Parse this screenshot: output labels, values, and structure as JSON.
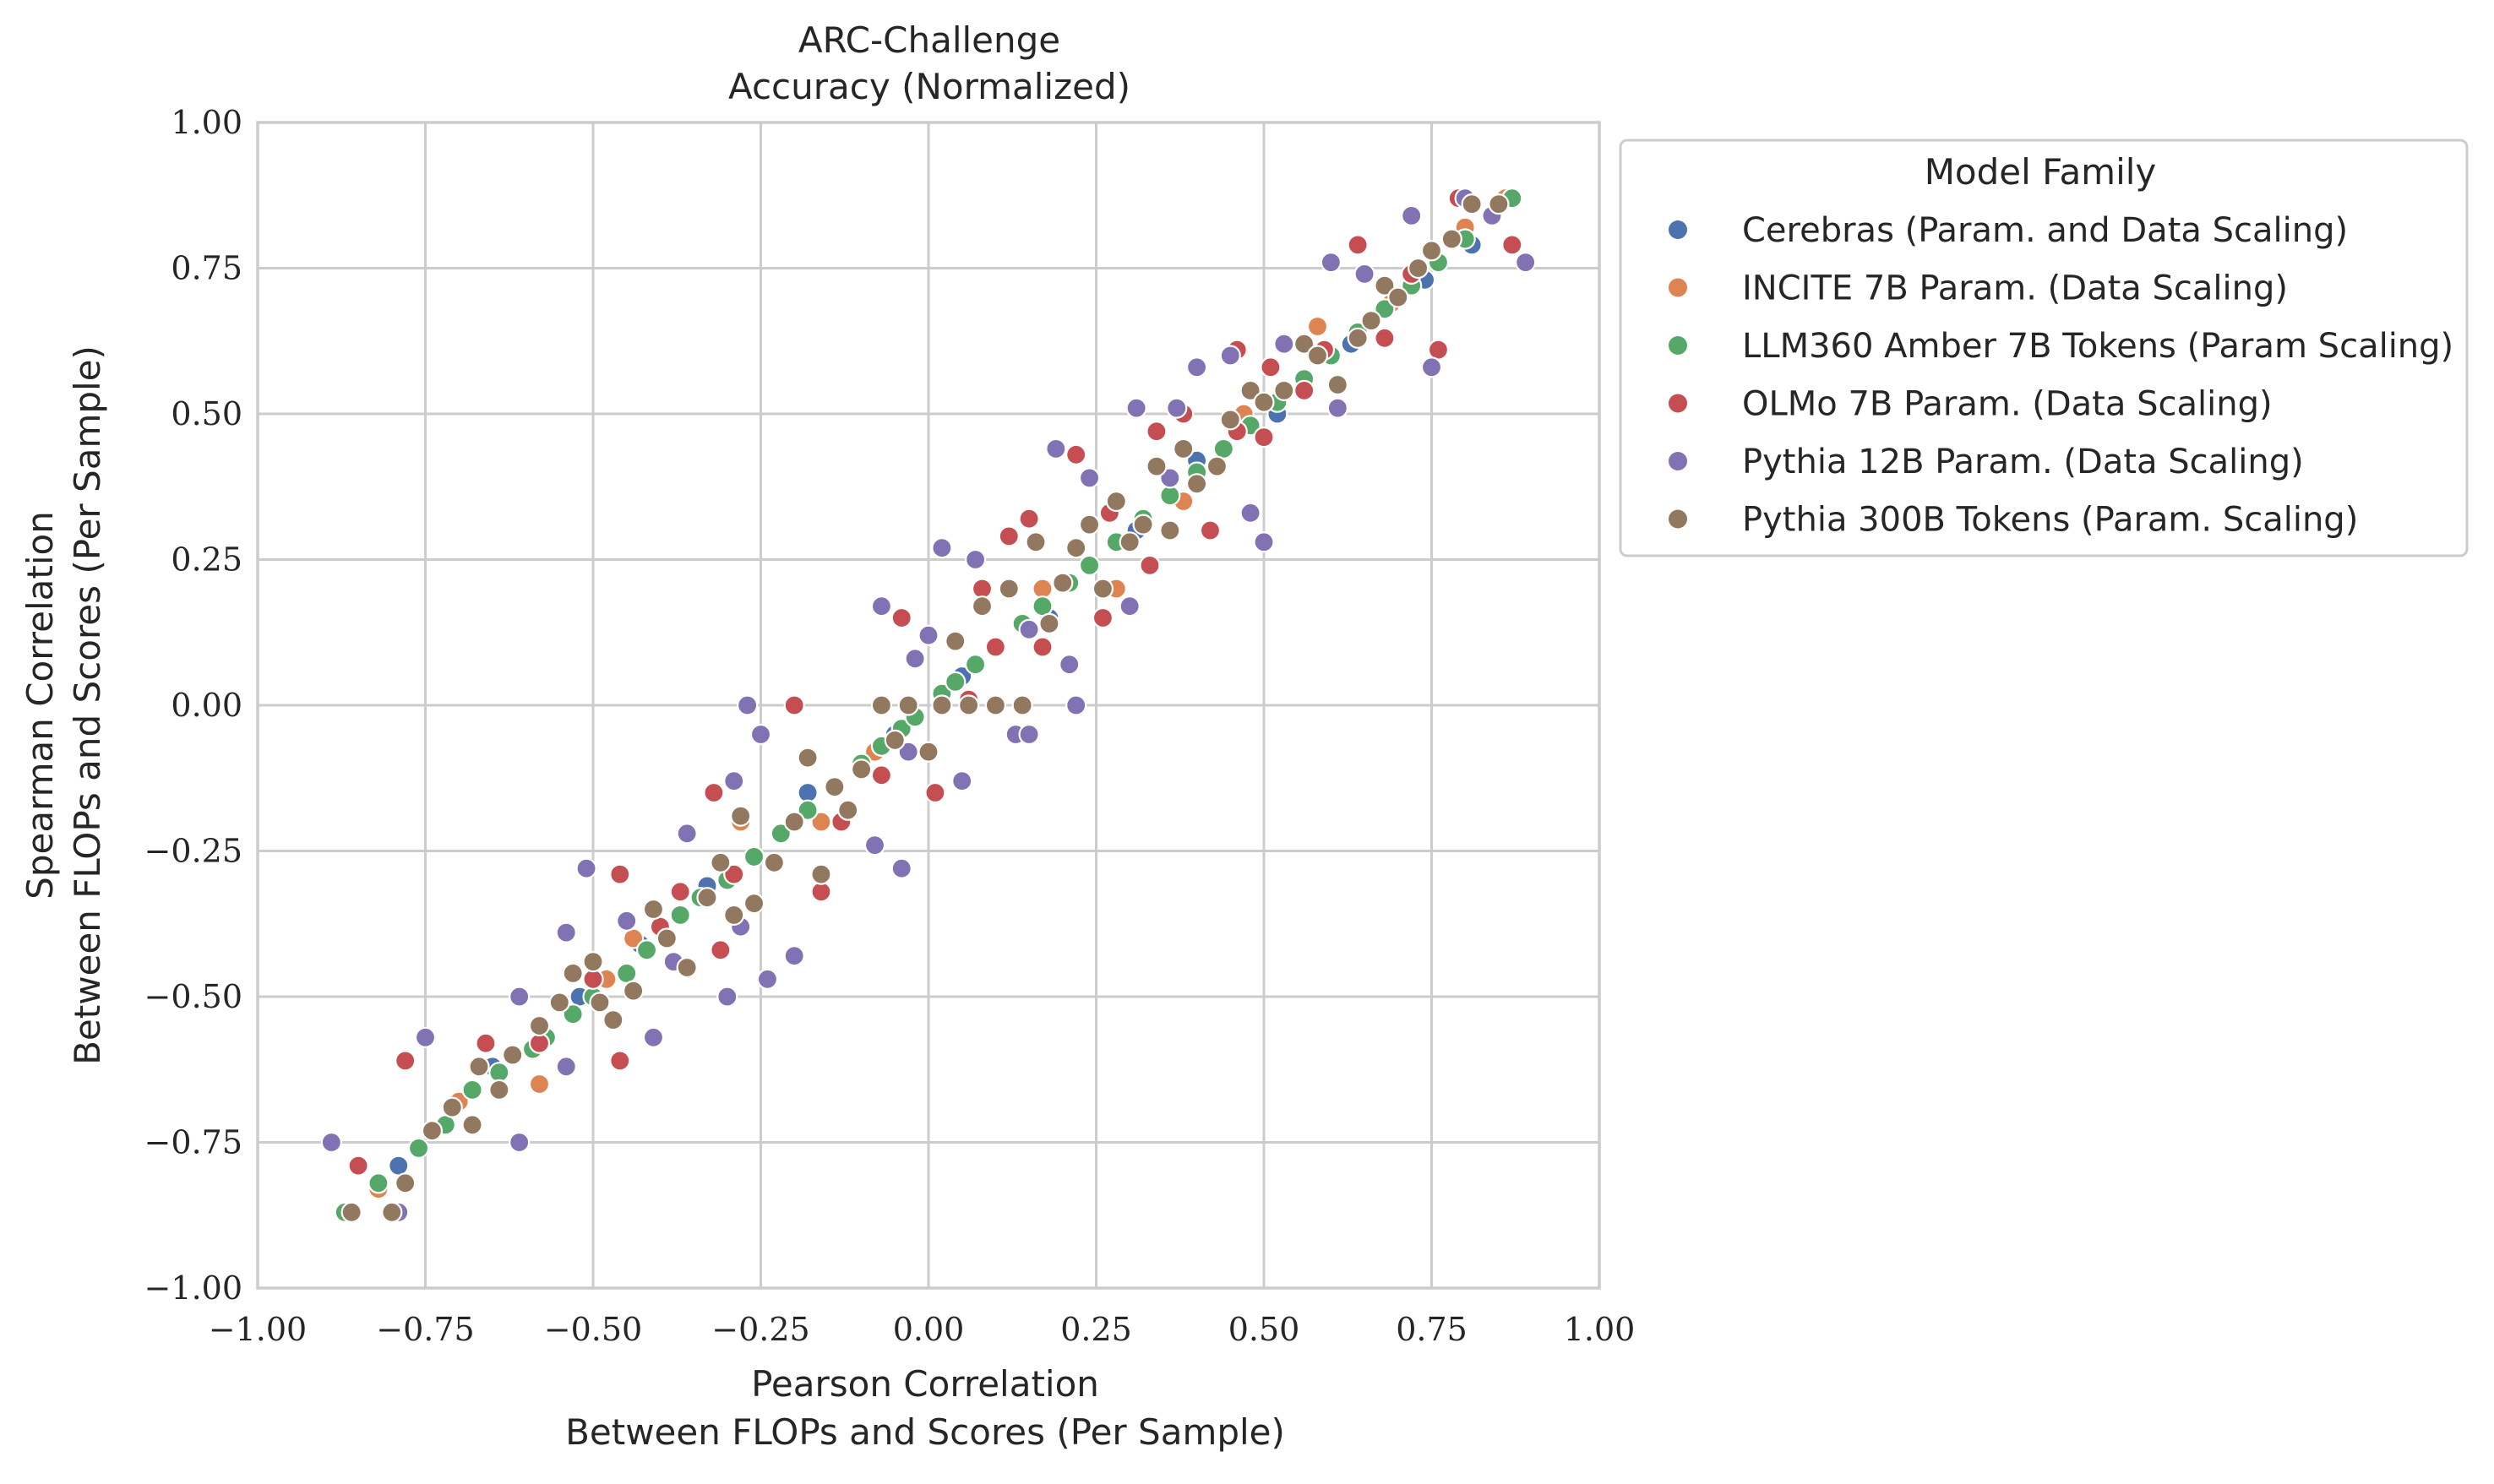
{
  "chart_data": {
    "type": "scatter",
    "title": "ARC-Challenge",
    "subtitle": "Accuracy (Normalized)",
    "xlabel": "Pearson Correlation",
    "xlabel_line2": "Between FLOPs and Scores (Per Sample)",
    "ylabel": "Spearman Correlation",
    "ylabel_line2": "Between FLOPs and Scores (Per Sample)",
    "xlim": [
      -1.0,
      1.0
    ],
    "ylim": [
      -1.0,
      1.0
    ],
    "xticks": [
      "−1.00",
      "−0.75",
      "−0.50",
      "−0.25",
      "0.00",
      "0.25",
      "0.50",
      "0.75",
      "1.00"
    ],
    "yticks": [
      "−1.00",
      "−0.75",
      "−0.50",
      "−0.25",
      "0.00",
      "0.25",
      "0.50",
      "0.75",
      "1.00"
    ],
    "grid": true,
    "legend_title": "Model Family",
    "legend_position": "outside-top-right",
    "series": [
      {
        "name": "Cerebras (Param. and Data Scaling)",
        "color": "#4c72b0",
        "points": [
          [
            -0.79,
            -0.79
          ],
          [
            -0.65,
            -0.62
          ],
          [
            -0.52,
            -0.5
          ],
          [
            -0.43,
            -0.41
          ],
          [
            -0.33,
            -0.31
          ],
          [
            -0.18,
            -0.15
          ],
          [
            -0.05,
            -0.05
          ],
          [
            0.05,
            0.05
          ],
          [
            0.18,
            0.15
          ],
          [
            0.31,
            0.3
          ],
          [
            0.4,
            0.42
          ],
          [
            0.52,
            0.5
          ],
          [
            0.63,
            0.62
          ],
          [
            0.74,
            0.73
          ],
          [
            0.81,
            0.79
          ]
        ]
      },
      {
        "name": "INCITE 7B Param. (Data Scaling)",
        "color": "#dd8452",
        "points": [
          [
            -0.86,
            -0.87
          ],
          [
            -0.82,
            -0.83
          ],
          [
            -0.7,
            -0.68
          ],
          [
            -0.58,
            -0.65
          ],
          [
            -0.48,
            -0.47
          ],
          [
            -0.44,
            -0.4
          ],
          [
            -0.28,
            -0.2
          ],
          [
            -0.16,
            -0.2
          ],
          [
            -0.08,
            -0.08
          ],
          [
            0.1,
            0.1
          ],
          [
            0.17,
            0.2
          ],
          [
            0.28,
            0.2
          ],
          [
            0.38,
            0.35
          ],
          [
            0.47,
            0.5
          ],
          [
            0.58,
            0.65
          ],
          [
            0.69,
            0.69
          ],
          [
            0.8,
            0.82
          ],
          [
            0.86,
            0.87
          ]
        ]
      },
      {
        "name": "LLM360 Amber 7B Tokens (Param Scaling)",
        "color": "#55a868",
        "points": [
          [
            -0.87,
            -0.87
          ],
          [
            -0.82,
            -0.82
          ],
          [
            -0.76,
            -0.76
          ],
          [
            -0.72,
            -0.72
          ],
          [
            -0.68,
            -0.66
          ],
          [
            -0.64,
            -0.63
          ],
          [
            -0.59,
            -0.59
          ],
          [
            -0.57,
            -0.57
          ],
          [
            -0.53,
            -0.53
          ],
          [
            -0.5,
            -0.5
          ],
          [
            -0.45,
            -0.46
          ],
          [
            -0.42,
            -0.42
          ],
          [
            -0.37,
            -0.36
          ],
          [
            -0.34,
            -0.33
          ],
          [
            -0.3,
            -0.3
          ],
          [
            -0.26,
            -0.26
          ],
          [
            -0.22,
            -0.22
          ],
          [
            -0.18,
            -0.18
          ],
          [
            -0.14,
            -0.14
          ],
          [
            -0.1,
            -0.1
          ],
          [
            -0.07,
            -0.07
          ],
          [
            -0.04,
            -0.04
          ],
          [
            -0.02,
            -0.02
          ],
          [
            0.02,
            0.02
          ],
          [
            0.04,
            0.04
          ],
          [
            0.07,
            0.07
          ],
          [
            0.1,
            0.1
          ],
          [
            0.14,
            0.14
          ],
          [
            0.17,
            0.17
          ],
          [
            0.21,
            0.21
          ],
          [
            0.24,
            0.24
          ],
          [
            0.28,
            0.28
          ],
          [
            0.32,
            0.32
          ],
          [
            0.36,
            0.36
          ],
          [
            0.4,
            0.4
          ],
          [
            0.44,
            0.44
          ],
          [
            0.48,
            0.48
          ],
          [
            0.52,
            0.52
          ],
          [
            0.56,
            0.56
          ],
          [
            0.6,
            0.6
          ],
          [
            0.64,
            0.64
          ],
          [
            0.68,
            0.68
          ],
          [
            0.72,
            0.72
          ],
          [
            0.76,
            0.76
          ],
          [
            0.8,
            0.8
          ],
          [
            0.84,
            0.84
          ],
          [
            0.87,
            0.87
          ]
        ]
      },
      {
        "name": "OLMo 7B Param. (Data Scaling)",
        "color": "#c44e52",
        "points": [
          [
            -0.85,
            -0.79
          ],
          [
            -0.78,
            -0.61
          ],
          [
            -0.66,
            -0.58
          ],
          [
            -0.58,
            -0.58
          ],
          [
            -0.5,
            -0.47
          ],
          [
            -0.46,
            -0.61
          ],
          [
            -0.46,
            -0.29
          ],
          [
            -0.4,
            -0.38
          ],
          [
            -0.37,
            -0.32
          ],
          [
            -0.31,
            -0.42
          ],
          [
            -0.32,
            -0.15
          ],
          [
            -0.29,
            -0.29
          ],
          [
            -0.2,
            -0.43
          ],
          [
            -0.2,
            -0.2
          ],
          [
            -0.16,
            -0.32
          ],
          [
            -0.13,
            -0.2
          ],
          [
            -0.2,
            0.0
          ],
          [
            -0.07,
            -0.12
          ],
          [
            -0.04,
            0.15
          ],
          [
            0.01,
            -0.15
          ],
          [
            0.06,
            0.01
          ],
          [
            0.08,
            0.2
          ],
          [
            0.1,
            0.1
          ],
          [
            0.12,
            0.29
          ],
          [
            0.15,
            0.32
          ],
          [
            0.17,
            0.1
          ],
          [
            0.22,
            0.43
          ],
          [
            0.26,
            0.15
          ],
          [
            0.27,
            0.33
          ],
          [
            0.33,
            0.24
          ],
          [
            0.34,
            0.47
          ],
          [
            0.38,
            0.5
          ],
          [
            0.42,
            0.3
          ],
          [
            0.46,
            0.47
          ],
          [
            0.46,
            0.61
          ],
          [
            0.5,
            0.46
          ],
          [
            0.51,
            0.58
          ],
          [
            0.56,
            0.54
          ],
          [
            0.59,
            0.61
          ],
          [
            0.64,
            0.79
          ],
          [
            0.68,
            0.63
          ],
          [
            0.72,
            0.74
          ],
          [
            0.76,
            0.61
          ],
          [
            0.79,
            0.87
          ],
          [
            0.87,
            0.79
          ]
        ]
      },
      {
        "name": "Pythia 12B Param. (Data Scaling)",
        "color": "#8172b3",
        "points": [
          [
            -0.89,
            -0.75
          ],
          [
            -0.79,
            -0.87
          ],
          [
            -0.75,
            -0.57
          ],
          [
            -0.61,
            -0.75
          ],
          [
            -0.61,
            -0.5
          ],
          [
            -0.54,
            -0.62
          ],
          [
            -0.54,
            -0.39
          ],
          [
            -0.51,
            -0.28
          ],
          [
            -0.45,
            -0.37
          ],
          [
            -0.41,
            -0.57
          ],
          [
            -0.38,
            -0.44
          ],
          [
            -0.36,
            -0.22
          ],
          [
            -0.3,
            -0.5
          ],
          [
            -0.28,
            -0.38
          ],
          [
            -0.24,
            -0.47
          ],
          [
            -0.25,
            -0.05
          ],
          [
            -0.27,
            0.0
          ],
          [
            -0.29,
            -0.13
          ],
          [
            -0.2,
            -0.43
          ],
          [
            -0.08,
            -0.24
          ],
          [
            -0.07,
            0.17
          ],
          [
            -0.04,
            -0.28
          ],
          [
            -0.02,
            0.08
          ],
          [
            -0.03,
            -0.08
          ],
          [
            0.0,
            0.12
          ],
          [
            0.02,
            0.27
          ],
          [
            0.05,
            -0.13
          ],
          [
            0.07,
            0.25
          ],
          [
            0.13,
            -0.05
          ],
          [
            0.15,
            -0.05
          ],
          [
            0.15,
            0.13
          ],
          [
            0.19,
            0.44
          ],
          [
            0.21,
            0.07
          ],
          [
            0.22,
            0.0
          ],
          [
            0.24,
            0.39
          ],
          [
            0.3,
            0.17
          ],
          [
            0.31,
            0.51
          ],
          [
            0.36,
            0.39
          ],
          [
            0.37,
            0.51
          ],
          [
            0.4,
            0.58
          ],
          [
            0.45,
            0.6
          ],
          [
            0.48,
            0.33
          ],
          [
            0.5,
            0.28
          ],
          [
            0.53,
            0.62
          ],
          [
            0.6,
            0.76
          ],
          [
            0.61,
            0.51
          ],
          [
            0.65,
            0.74
          ],
          [
            0.72,
            0.84
          ],
          [
            0.75,
            0.58
          ],
          [
            0.8,
            0.87
          ],
          [
            0.84,
            0.84
          ],
          [
            0.89,
            0.76
          ]
        ]
      },
      {
        "name": "Pythia 300B Tokens (Param. Scaling)",
        "color": "#937860",
        "points": [
          [
            -0.86,
            -0.87
          ],
          [
            -0.8,
            -0.87
          ],
          [
            -0.78,
            -0.82
          ],
          [
            -0.74,
            -0.73
          ],
          [
            -0.71,
            -0.69
          ],
          [
            -0.68,
            -0.72
          ],
          [
            -0.67,
            -0.62
          ],
          [
            -0.64,
            -0.66
          ],
          [
            -0.62,
            -0.6
          ],
          [
            -0.58,
            -0.55
          ],
          [
            -0.55,
            -0.51
          ],
          [
            -0.53,
            -0.46
          ],
          [
            -0.5,
            -0.44
          ],
          [
            -0.49,
            -0.51
          ],
          [
            -0.47,
            -0.54
          ],
          [
            -0.44,
            -0.49
          ],
          [
            -0.41,
            -0.35
          ],
          [
            -0.39,
            -0.4
          ],
          [
            -0.36,
            -0.45
          ],
          [
            -0.33,
            -0.33
          ],
          [
            -0.31,
            -0.27
          ],
          [
            -0.29,
            -0.36
          ],
          [
            -0.28,
            -0.19
          ],
          [
            -0.26,
            -0.34
          ],
          [
            -0.23,
            -0.27
          ],
          [
            -0.2,
            -0.2
          ],
          [
            -0.18,
            -0.09
          ],
          [
            -0.16,
            -0.29
          ],
          [
            -0.14,
            -0.14
          ],
          [
            -0.12,
            -0.18
          ],
          [
            -0.1,
            -0.11
          ],
          [
            -0.07,
            0.0
          ],
          [
            -0.05,
            -0.06
          ],
          [
            -0.03,
            0.0
          ],
          [
            0.0,
            -0.08
          ],
          [
            0.02,
            0.0
          ],
          [
            0.04,
            0.11
          ],
          [
            0.06,
            0.0
          ],
          [
            0.08,
            0.17
          ],
          [
            0.1,
            0.0
          ],
          [
            0.12,
            0.2
          ],
          [
            0.14,
            0.0
          ],
          [
            0.16,
            0.28
          ],
          [
            0.18,
            0.14
          ],
          [
            0.2,
            0.21
          ],
          [
            0.22,
            0.27
          ],
          [
            0.24,
            0.31
          ],
          [
            0.26,
            0.2
          ],
          [
            0.28,
            0.35
          ],
          [
            0.3,
            0.28
          ],
          [
            0.32,
            0.31
          ],
          [
            0.34,
            0.41
          ],
          [
            0.36,
            0.3
          ],
          [
            0.38,
            0.44
          ],
          [
            0.4,
            0.38
          ],
          [
            0.43,
            0.41
          ],
          [
            0.45,
            0.49
          ],
          [
            0.48,
            0.54
          ],
          [
            0.5,
            0.52
          ],
          [
            0.53,
            0.54
          ],
          [
            0.56,
            0.62
          ],
          [
            0.58,
            0.6
          ],
          [
            0.61,
            0.55
          ],
          [
            0.64,
            0.63
          ],
          [
            0.66,
            0.66
          ],
          [
            0.68,
            0.72
          ],
          [
            0.7,
            0.7
          ],
          [
            0.73,
            0.75
          ],
          [
            0.75,
            0.78
          ],
          [
            0.78,
            0.8
          ],
          [
            0.81,
            0.86
          ],
          [
            0.85,
            0.86
          ]
        ]
      }
    ]
  }
}
